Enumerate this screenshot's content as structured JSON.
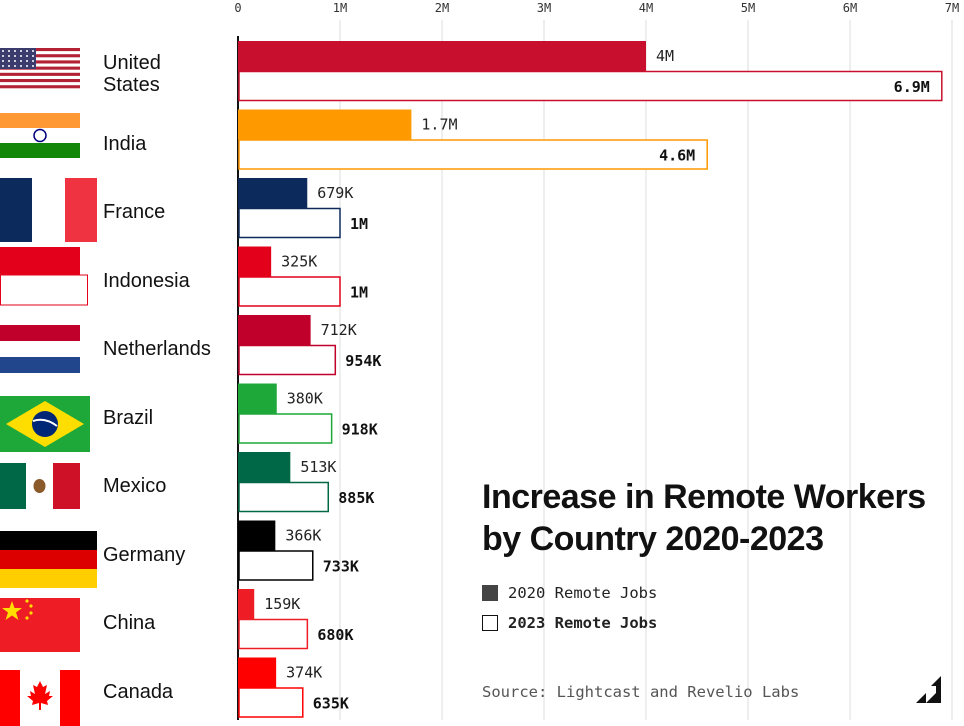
{
  "chart_data": {
    "type": "bar",
    "orientation": "horizontal",
    "title": "Increase in Remote Workers by Country 2020-2023",
    "title_lines": [
      "Increase in Remote Workers",
      "by Country 2020-2023"
    ],
    "xlim": [
      0,
      7000000
    ],
    "x_ticks": [
      {
        "value": 0,
        "label": "0"
      },
      {
        "value": 1000000,
        "label": "1M"
      },
      {
        "value": 2000000,
        "label": "2M"
      },
      {
        "value": 3000000,
        "label": "3M"
      },
      {
        "value": 4000000,
        "label": "4M"
      },
      {
        "value": 5000000,
        "label": "5M"
      },
      {
        "value": 6000000,
        "label": "6M"
      },
      {
        "value": 7000000,
        "label": "7M"
      }
    ],
    "grid": true,
    "legend": {
      "placement": "bottom-right",
      "items": [
        {
          "label": "2020 Remote Jobs",
          "style": "filled",
          "color": "#444444"
        },
        {
          "label": "2023 Remote Jobs",
          "style": "outline",
          "color": "#111111"
        }
      ]
    },
    "source": "Source: Lightcast and Revelio Labs",
    "series": [
      {
        "name": "2020 Remote Jobs",
        "style": "filled"
      },
      {
        "name": "2023 Remote Jobs",
        "style": "outline"
      }
    ],
    "countries": [
      {
        "name": "United States",
        "label_lines": [
          "United",
          "States"
        ],
        "flag": "us-flag",
        "color": "#C8102E",
        "v2020": 4000000,
        "label2020": "4M",
        "v2023": 6900000,
        "label2023": "6.9M"
      },
      {
        "name": "India",
        "label_lines": [
          "India"
        ],
        "flag": "india-flag",
        "color": "#FF9900",
        "v2020": 1700000,
        "label2020": "1.7M",
        "v2023": 4600000,
        "label2023": "4.6M"
      },
      {
        "name": "France",
        "label_lines": [
          "France"
        ],
        "flag": "france-flag",
        "color": "#0D2A5C",
        "v2020": 679000,
        "label2020": "679K",
        "v2023": 1000000,
        "label2023": "1M"
      },
      {
        "name": "Indonesia",
        "label_lines": [
          "Indonesia"
        ],
        "flag": "indonesia-flag",
        "color": "#E2001A",
        "v2020": 325000,
        "label2020": "325K",
        "v2023": 1000000,
        "label2023": "1M"
      },
      {
        "name": "Netherlands",
        "label_lines": [
          "Netherlands"
        ],
        "flag": "netherlands-flag",
        "color": "#C0002A",
        "v2020": 712000,
        "label2020": "712K",
        "v2023": 954000,
        "label2023": "954K"
      },
      {
        "name": "Brazil",
        "label_lines": [
          "Brazil"
        ],
        "flag": "brazil-flag",
        "color": "#1FA83A",
        "v2020": 380000,
        "label2020": "380K",
        "v2023": 918000,
        "label2023": "918K"
      },
      {
        "name": "Mexico",
        "label_lines": [
          "Mexico"
        ],
        "flag": "mexico-flag",
        "color": "#006847",
        "v2020": 513000,
        "label2020": "513K",
        "v2023": 885000,
        "label2023": "885K"
      },
      {
        "name": "Germany",
        "label_lines": [
          "Germany"
        ],
        "flag": "germany-flag",
        "color": "#000000",
        "v2020": 366000,
        "label2020": "366K",
        "v2023": 733000,
        "label2023": "733K"
      },
      {
        "name": "China",
        "label_lines": [
          "China"
        ],
        "flag": "china-flag",
        "color": "#EE1C25",
        "v2020": 159000,
        "label2020": "159K",
        "v2023": 680000,
        "label2023": "680K"
      },
      {
        "name": "Canada",
        "label_lines": [
          "Canada"
        ],
        "flag": "canada-flag",
        "color": "#FF0000",
        "v2020": 374000,
        "label2020": "374K",
        "v2023": 635000,
        "label2023": "635K"
      }
    ]
  },
  "brand": {
    "logo_icon": "brand-logo-icon"
  }
}
